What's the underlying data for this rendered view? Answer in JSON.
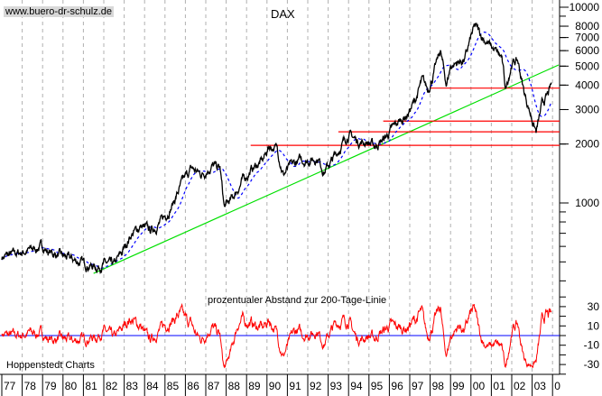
{
  "chart_data": [
    {
      "type": "line",
      "title": "DAX",
      "scale": "log",
      "ylim": [
        400,
        11000
      ],
      "xlim": [
        1977,
        2004.3
      ],
      "y_ticks": [
        10000,
        8000,
        7000,
        6000,
        5000,
        4000,
        3000,
        2000,
        1000
      ],
      "x_tick_labels": [
        "77",
        "78",
        "79",
        "80",
        "81",
        "82",
        "83",
        "84",
        "85",
        "86",
        "87",
        "88",
        "89",
        "90",
        "91",
        "92",
        "93",
        "94",
        "95",
        "96",
        "97",
        "98",
        "99",
        "00",
        "01",
        "02",
        "03",
        "0"
      ],
      "grid": "vertical dashed",
      "series": [
        {
          "color": "#000000",
          "points": [
            [
              1977.0,
              530
            ],
            [
              1977.5,
              545
            ],
            [
              1978.0,
              560
            ],
            [
              1978.5,
              580
            ],
            [
              1979.0,
              600
            ],
            [
              1979.3,
              560
            ],
            [
              1979.8,
              540
            ],
            [
              1980.3,
              520
            ],
            [
              1980.8,
              500
            ],
            [
              1981.3,
              480
            ],
            [
              1981.7,
              470
            ],
            [
              1982.0,
              490
            ],
            [
              1982.5,
              480
            ],
            [
              1982.9,
              560
            ],
            [
              1983.3,
              680
            ],
            [
              1983.8,
              760
            ],
            [
              1984.3,
              720
            ],
            [
              1984.8,
              800
            ],
            [
              1985.3,
              950
            ],
            [
              1985.9,
              1300
            ],
            [
              1986.3,
              1500
            ],
            [
              1986.8,
              1400
            ],
            [
              1987.3,
              1550
            ],
            [
              1987.7,
              1500
            ],
            [
              1987.9,
              950
            ],
            [
              1988.3,
              1050
            ],
            [
              1988.8,
              1300
            ],
            [
              1989.3,
              1500
            ],
            [
              1989.8,
              1650
            ],
            [
              1990.1,
              1950
            ],
            [
              1990.5,
              1900
            ],
            [
              1990.8,
              1400
            ],
            [
              1991.2,
              1550
            ],
            [
              1991.6,
              1650
            ],
            [
              1992.0,
              1650
            ],
            [
              1992.5,
              1700
            ],
            [
              1992.8,
              1450
            ],
            [
              1993.2,
              1650
            ],
            [
              1993.7,
              2000
            ],
            [
              1994.0,
              2250
            ],
            [
              1994.5,
              2050
            ],
            [
              1994.9,
              2050
            ],
            [
              1995.3,
              1950
            ],
            [
              1995.8,
              2150
            ],
            [
              1996.3,
              2500
            ],
            [
              1996.9,
              2850
            ],
            [
              1997.3,
              3400
            ],
            [
              1997.6,
              4200
            ],
            [
              1997.9,
              3800
            ],
            [
              1998.2,
              4700
            ],
            [
              1998.5,
              6000
            ],
            [
              1998.8,
              4000
            ],
            [
              1999.0,
              5000
            ],
            [
              1999.3,
              5200
            ],
            [
              1999.7,
              5400
            ],
            [
              2000.0,
              7000
            ],
            [
              2000.2,
              8000
            ],
            [
              2000.5,
              7200
            ],
            [
              2000.9,
              6400
            ],
            [
              2001.3,
              5800
            ],
            [
              2001.5,
              5500
            ],
            [
              2001.7,
              3800
            ],
            [
              2002.0,
              5200
            ],
            [
              2002.3,
              5300
            ],
            [
              2002.6,
              3700
            ],
            [
              2002.9,
              2900
            ],
            [
              2003.2,
              2300
            ],
            [
              2003.5,
              3200
            ],
            [
              2003.8,
              3600
            ],
            [
              2003.95,
              4000
            ]
          ]
        },
        {
          "name": "200-Tage-Linie",
          "color": "#0000ff",
          "style": "dashed"
        }
      ],
      "trendline": {
        "color": "#00e000",
        "from": [
          1981.5,
          437
        ],
        "to": [
          2004.3,
          5070
        ]
      },
      "horizontal_lines": [
        {
          "from_year": 1998.0,
          "value": 3860,
          "color": "#ff0000"
        },
        {
          "from_year": 1995.7,
          "value": 2620,
          "color": "#ff0000"
        },
        {
          "from_year": 1993.5,
          "value": 2310,
          "color": "#ff0000"
        },
        {
          "from_year": 1989.2,
          "value": 1970,
          "color": "#ff0000"
        }
      ]
    },
    {
      "type": "line",
      "title": "prozentualer Abstand zur 200-Tage-Linie",
      "y_ticks": [
        30,
        10,
        -10,
        -30
      ],
      "zero_line_color": "#0000ff",
      "series_color": "#ff0000"
    }
  ],
  "watermark": "www.buero-dr-schulz.de",
  "source": "Hoppenstedt Charts"
}
